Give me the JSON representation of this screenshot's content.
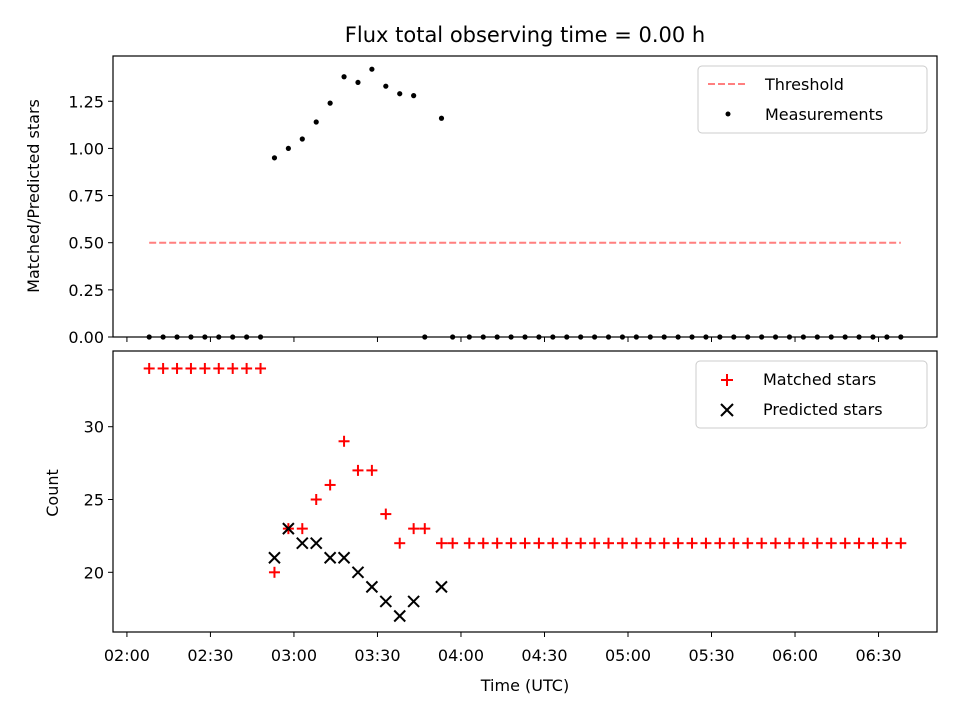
{
  "chart_data": [
    {
      "type": "scatter",
      "title": "Flux total observing time = 0.00 h",
      "xlabel": "",
      "ylabel": "Matched/Predicted stars",
      "ylim": [
        0,
        1.49
      ],
      "xlim": [
        "01:55",
        "06:51"
      ],
      "yticks": [
        "0.00",
        "0.25",
        "0.50",
        "0.75",
        "1.00",
        "1.25"
      ],
      "legend_position": "top-right",
      "grid": false,
      "series": [
        {
          "name": "Threshold",
          "kind": "dashed-line",
          "color": "#ff7f7f",
          "x": [
            "02:08",
            "06:38"
          ],
          "y": [
            0.5,
            0.5
          ]
        },
        {
          "name": "Measurements",
          "kind": "scatter",
          "color": "#000000",
          "x": [
            "02:08",
            "02:13",
            "02:18",
            "02:23",
            "02:28",
            "02:33",
            "02:38",
            "02:43",
            "02:48",
            "02:53",
            "02:58",
            "03:03",
            "03:08",
            "03:13",
            "03:18",
            "03:23",
            "03:28",
            "03:33",
            "03:38",
            "03:43",
            "03:47",
            "03:53",
            "03:57",
            "04:03",
            "04:08",
            "04:13",
            "04:18",
            "04:23",
            "04:28",
            "04:33",
            "04:38",
            "04:43",
            "04:48",
            "04:53",
            "04:58",
            "05:03",
            "05:08",
            "05:13",
            "05:18",
            "05:23",
            "05:28",
            "05:33",
            "05:38",
            "05:43",
            "05:48",
            "05:53",
            "05:58",
            "06:03",
            "06:08",
            "06:13",
            "06:18",
            "06:23",
            "06:28",
            "06:33",
            "06:38"
          ],
          "y": [
            0,
            0,
            0,
            0,
            0,
            0,
            0,
            0,
            0,
            0.95,
            1.0,
            1.05,
            1.14,
            1.24,
            1.38,
            1.35,
            1.42,
            1.33,
            1.29,
            1.28,
            0,
            1.16,
            0,
            0,
            0,
            0,
            0,
            0,
            0,
            0,
            0,
            0,
            0,
            0,
            0,
            0,
            0,
            0,
            0,
            0,
            0,
            0,
            0,
            0,
            0,
            0,
            0,
            0,
            0,
            0,
            0,
            0,
            0,
            0,
            0
          ]
        }
      ]
    },
    {
      "type": "scatter",
      "title": "",
      "xlabel": "Time (UTC)",
      "ylabel": "Count",
      "ylim": [
        15.9,
        35.2
      ],
      "xlim": [
        "01:55",
        "06:51"
      ],
      "yticks": [
        "20",
        "25",
        "30"
      ],
      "xticks": [
        "02:00",
        "02:30",
        "03:00",
        "03:30",
        "04:00",
        "04:30",
        "05:00",
        "05:30",
        "06:00",
        "06:30"
      ],
      "legend_position": "top-right",
      "grid": false,
      "series": [
        {
          "name": "Matched stars",
          "marker": "+",
          "color": "#ff0000",
          "x": [
            "02:08",
            "02:13",
            "02:18",
            "02:23",
            "02:28",
            "02:33",
            "02:38",
            "02:43",
            "02:48",
            "02:53",
            "02:58",
            "03:03",
            "03:08",
            "03:13",
            "03:18",
            "03:23",
            "03:28",
            "03:33",
            "03:38",
            "03:43",
            "03:47",
            "03:53",
            "03:57",
            "04:03",
            "04:08",
            "04:13",
            "04:18",
            "04:23",
            "04:28",
            "04:33",
            "04:38",
            "04:43",
            "04:48",
            "04:53",
            "04:58",
            "05:03",
            "05:08",
            "05:13",
            "05:18",
            "05:23",
            "05:28",
            "05:33",
            "05:38",
            "05:43",
            "05:48",
            "05:53",
            "05:58",
            "06:03",
            "06:08",
            "06:13",
            "06:18",
            "06:23",
            "06:28",
            "06:33",
            "06:38"
          ],
          "y": [
            34,
            34,
            34,
            34,
            34,
            34,
            34,
            34,
            34,
            20,
            23,
            23,
            25,
            26,
            29,
            27,
            27,
            24,
            22,
            23,
            23,
            22,
            22,
            22,
            22,
            22,
            22,
            22,
            22,
            22,
            22,
            22,
            22,
            22,
            22,
            22,
            22,
            22,
            22,
            22,
            22,
            22,
            22,
            22,
            22,
            22,
            22,
            22,
            22,
            22,
            22,
            22,
            22,
            22,
            22
          ]
        },
        {
          "name": "Predicted stars",
          "marker": "x",
          "color": "#000000",
          "x": [
            "02:53",
            "02:58",
            "03:03",
            "03:08",
            "03:13",
            "03:18",
            "03:23",
            "03:28",
            "03:33",
            "03:38",
            "03:43",
            "03:53"
          ],
          "y": [
            21,
            23,
            22,
            22,
            21,
            21,
            20,
            19,
            18,
            17,
            18,
            19
          ]
        }
      ]
    }
  ]
}
